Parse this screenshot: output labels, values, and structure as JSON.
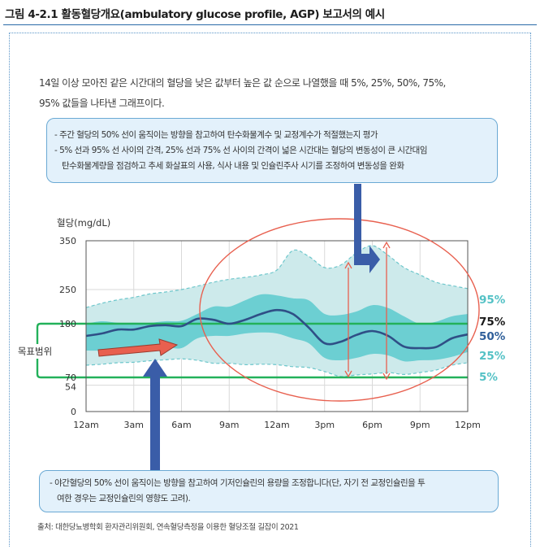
{
  "figure": {
    "title": "그림 4-2.1 활동혈당개요(ambulatory glucose profile, AGP) 보고서의 예시",
    "intro_line1": "14일 이상 모아진 같은 시간대의 혈당을 낮은 값부터 높은 값 순으로 나열했을 때 5%, 25%, 50%, 75%,",
    "intro_line2": "95% 값들을 나타낸 그래프이다.",
    "callout_top_line1": "- 주간 혈당의 50% 선이 움직이는 방향을 참고하여 탄수화물계수 및 교정계수가 적절했는지 평가",
    "callout_top_line2": "- 5% 선과 95% 선 사이의 간격, 25% 선과 75% 선 사이의 간격이 넓은 시간대는 혈당의 변동성이 큰 시간대임",
    "callout_top_line3": "탄수화물계량을 점검하고 추세 화살표의 사용, 식사 내용 및 인슐린주사 시기를 조정하여 변동성을 완화",
    "callout_bottom_line1": "- 야간혈당의 50% 선이 움직이는 방향을 참고하여 기저인슐린의 용량을 조정합니다(단, 자기 전 교정인슐린을 투",
    "callout_bottom_line2": "여한 경우는 교정인슐린의 영향도 고려).",
    "source": "출처: 대한당뇨병학회 환자관리위원회, 연속혈당측정을 이용한 혈당조절 길잡이 2021"
  },
  "colors": {
    "outer_band": "#cdeaeb",
    "outer_band_edge": "#6cc6cb",
    "inner_band": "#6ccfd2",
    "median": "#2f4f86",
    "target_line": "#23b15a",
    "ellipse": "#e8604f",
    "arrow_blue": "#3a5da8",
    "arrow_red": "#e8604f",
    "label_95_5_25": "#53c1c5",
    "label_50": "#2f5f9a",
    "label_75": "#1a1a1a"
  },
  "chart_data": {
    "type": "area",
    "ylabel": "혈당(mg/dL)",
    "y_ticks": [
      0,
      54,
      70,
      180,
      250,
      350
    ],
    "y_tick_labels": [
      "0",
      "54",
      "70",
      "180",
      "250",
      "350"
    ],
    "ylim": [
      0,
      350
    ],
    "x_tick_labels": [
      "12am",
      "3am",
      "6am",
      "9am",
      "12am",
      "3pm",
      "6pm",
      "9pm",
      "12pm"
    ],
    "x_tick_hours": [
      0,
      3,
      6,
      9,
      12,
      15,
      18,
      21,
      24
    ],
    "target_range": [
      70,
      180
    ],
    "target_range_label": "목표범위",
    "grid": true,
    "legend_placement": "right",
    "hours": [
      0,
      1,
      2,
      3,
      4,
      5,
      6,
      7,
      8,
      9,
      10,
      11,
      12,
      13,
      14,
      15,
      16,
      17,
      18,
      19,
      20,
      21,
      22,
      23,
      24
    ],
    "series": [
      {
        "name": "95%",
        "values": [
          213,
          222,
          229,
          234,
          241,
          245,
          250,
          257,
          265,
          271,
          275,
          280,
          290,
          330,
          318,
          295,
          300,
          325,
          340,
          320,
          295,
          280,
          265,
          258,
          252
        ]
      },
      {
        "name": "75%",
        "values": [
          180,
          185,
          182,
          182,
          182,
          185,
          186,
          200,
          215,
          215,
          228,
          240,
          238,
          232,
          228,
          200,
          198,
          205,
          218,
          212,
          195,
          180,
          184,
          195,
          200
        ]
      },
      {
        "name": "50%",
        "values": [
          155,
          160,
          168,
          168,
          175,
          177,
          175,
          190,
          188,
          180,
          188,
          200,
          208,
          200,
          172,
          140,
          143,
          157,
          165,
          155,
          133,
          130,
          132,
          150,
          158
        ]
      },
      {
        "name": "25%",
        "values": [
          125,
          125,
          128,
          128,
          131,
          132,
          130,
          150,
          155,
          155,
          160,
          162,
          160,
          150,
          140,
          110,
          105,
          110,
          118,
          115,
          103,
          105,
          106,
          112,
          122
        ]
      },
      {
        "name": "5%",
        "values": [
          95,
          97,
          100,
          101,
          104,
          106,
          108,
          105,
          99,
          99,
          96,
          97,
          96,
          92,
          90,
          82,
          72,
          75,
          77,
          80,
          76,
          80,
          85,
          95,
          100
        ]
      }
    ]
  }
}
